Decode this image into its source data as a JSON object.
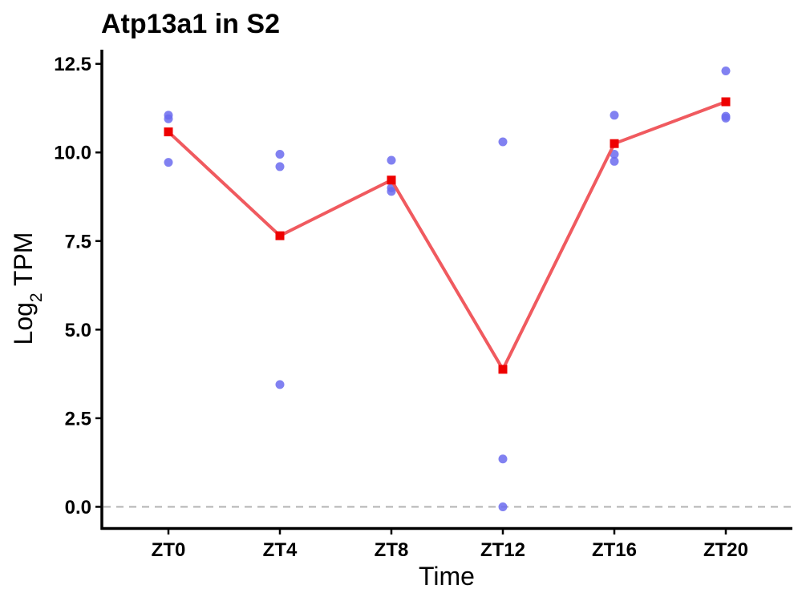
{
  "chart_data": {
    "type": "line",
    "title": "Atp13a1 in S2",
    "xlabel": "Time",
    "ylabel": {
      "main": "Log",
      "sub": "2",
      "rest": " TPM"
    },
    "categories": [
      "ZT0",
      "ZT4",
      "ZT8",
      "ZT12",
      "ZT16",
      "ZT20"
    ],
    "ylim": [
      -0.6,
      12.9
    ],
    "yticks": [
      0.0,
      2.5,
      5.0,
      7.5,
      10.0,
      12.5
    ],
    "ytick_labels": [
      "0.0",
      "2.5",
      "5.0",
      "7.5",
      "10.0",
      "12.5"
    ],
    "reference_line": 0,
    "series": [
      {
        "kind": "points",
        "color": "#6b6bef",
        "values": [
          [
            11.05,
            10.95,
            9.72
          ],
          [
            9.95,
            9.6,
            3.45
          ],
          [
            9.78,
            9.0,
            8.9
          ],
          [
            10.3,
            1.35,
            0.0
          ],
          [
            11.05,
            9.95,
            9.75
          ],
          [
            12.3,
            11.02,
            10.97
          ]
        ]
      },
      {
        "kind": "mean_line",
        "line_color": "#f05a5f",
        "marker_color": "#ee0000",
        "values": [
          10.58,
          7.65,
          9.22,
          3.88,
          10.25,
          11.43
        ]
      }
    ],
    "grid": false,
    "legend": "none"
  }
}
